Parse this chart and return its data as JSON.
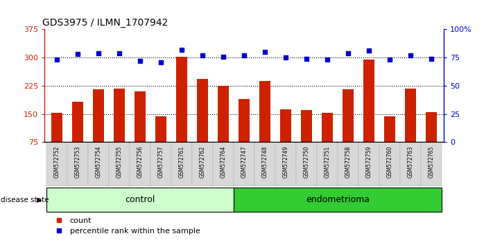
{
  "title": "GDS3975 / ILMN_1707942",
  "samples": [
    "GSM572752",
    "GSM572753",
    "GSM572754",
    "GSM572755",
    "GSM572756",
    "GSM572757",
    "GSM572761",
    "GSM572762",
    "GSM572764",
    "GSM572747",
    "GSM572748",
    "GSM572749",
    "GSM572750",
    "GSM572751",
    "GSM572758",
    "GSM572759",
    "GSM572760",
    "GSM572763",
    "GSM572765"
  ],
  "counts": [
    153,
    182,
    215,
    218,
    210,
    143,
    302,
    243,
    224,
    190,
    237,
    163,
    160,
    153,
    215,
    295,
    143,
    218,
    155
  ],
  "percentiles": [
    73,
    78,
    79,
    79,
    72,
    71,
    82,
    77,
    76,
    77,
    80,
    75,
    74,
    73,
    79,
    81,
    73,
    77,
    74
  ],
  "groups": [
    "control",
    "control",
    "control",
    "control",
    "control",
    "control",
    "control",
    "control",
    "control",
    "endometrioma",
    "endometrioma",
    "endometrioma",
    "endometrioma",
    "endometrioma",
    "endometrioma",
    "endometrioma",
    "endometrioma",
    "endometrioma",
    "endometrioma"
  ],
  "control_color": "#ccffcc",
  "endometrioma_color": "#33cc33",
  "bar_color": "#cc2200",
  "dot_color": "#0000cc",
  "ymin": 75,
  "ymax": 375,
  "yticks": [
    75,
    150,
    225,
    300,
    375
  ],
  "ytick_labels": [
    "75",
    "150",
    "225",
    "300",
    "375"
  ],
  "y2min": 0,
  "y2max": 100,
  "y2ticks": [
    0,
    25,
    50,
    75,
    100
  ],
  "y2tick_labels": [
    "0",
    "25",
    "50",
    "75",
    "100%"
  ],
  "dotted_lines": [
    150,
    225,
    300
  ],
  "legend_count_label": "count",
  "legend_pct_label": "percentile rank within the sample",
  "disease_state_label": "disease state",
  "figsize": [
    7.11,
    3.54
  ],
  "dpi": 100
}
